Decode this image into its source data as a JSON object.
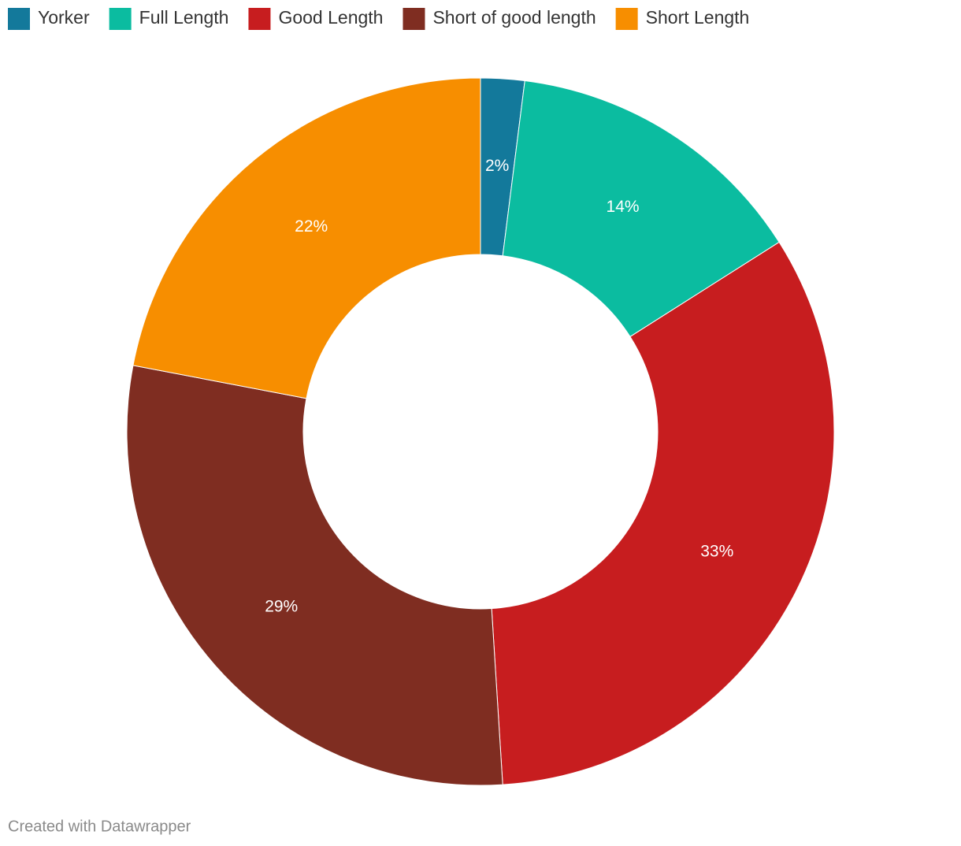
{
  "chart_data": {
    "type": "donut",
    "categories": [
      "Yorker",
      "Full Length",
      "Good Length",
      "Short of good length",
      "Short Length"
    ],
    "values": [
      2,
      14,
      33,
      29,
      22
    ],
    "value_labels": [
      "2%",
      "14%",
      "33%",
      "29%",
      "22%"
    ],
    "colors": [
      "#13799b",
      "#0bbca0",
      "#c71d1f",
      "#7f2d21",
      "#f78e00"
    ],
    "footer": "Created with Datawrapper"
  }
}
